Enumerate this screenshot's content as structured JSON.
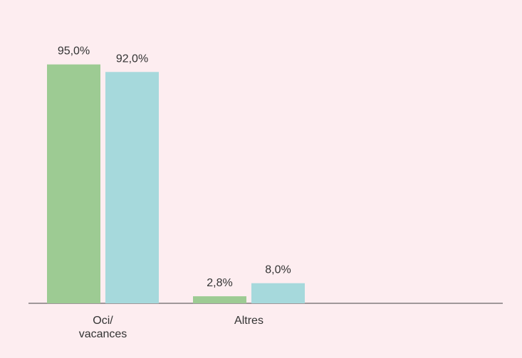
{
  "chart_data": {
    "type": "bar",
    "categories": [
      "Oci/ vacances",
      "Altres"
    ],
    "series": [
      {
        "color": "#9dcb93",
        "values": [
          95.0,
          2.8
        ],
        "value_labels": [
          "95,0%",
          "2,8%"
        ]
      },
      {
        "color": "#a6d9dc",
        "values": [
          92.0,
          8.0
        ],
        "value_labels": [
          "92,0%",
          "8,0%"
        ]
      }
    ],
    "ylim": [
      0,
      100
    ]
  }
}
